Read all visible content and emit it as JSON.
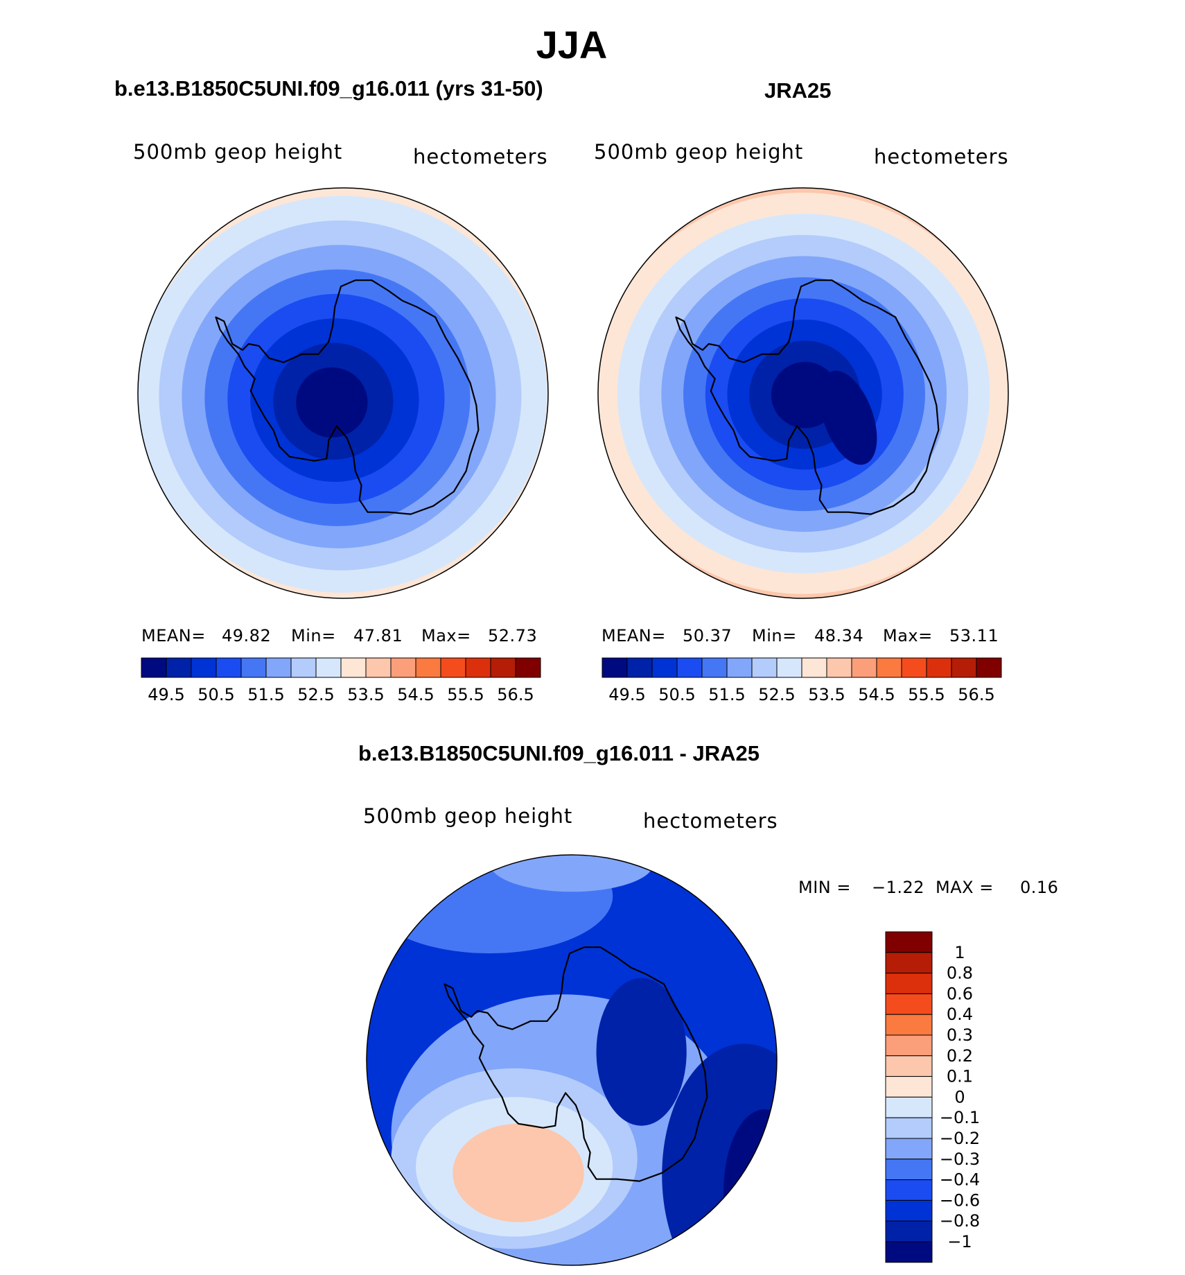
{
  "main_title": "JJA",
  "panels": [
    {
      "title": "b.e13.B1850C5UNI.f09_g16.011 (yrs 31-50)",
      "var_label": "500mb geop height",
      "units": "hectometers",
      "stats": {
        "mean_label": "MEAN=",
        "mean": "49.82",
        "min_label": "Min=",
        "min": "47.81",
        "max_label": "Max=",
        "max": "52.73"
      }
    },
    {
      "title": "JRA25",
      "var_label": "500mb geop height",
      "units": "hectometers",
      "stats": {
        "mean_label": "MEAN=",
        "mean": "50.37",
        "min_label": "Min=",
        "min": "48.34",
        "max_label": "Max=",
        "max": "53.11"
      }
    },
    {
      "title": "b.e13.B1850C5UNI.f09_g16.011 - JRA25",
      "var_label": "500mb geop height",
      "units": "hectometers",
      "stats": {
        "min_label": "MIN =",
        "min": "−1.22",
        "max_label": "MAX =",
        "max": "0.16"
      }
    }
  ],
  "chart_data": [
    {
      "type": "heatmap",
      "title": "b.e13.B1850C5UNI.f09_g16.011 (yrs 31-50)",
      "projection": "south polar stereographic",
      "variable": "500mb geop height",
      "units": "hectometers",
      "mean": 49.82,
      "min": 47.81,
      "max": 52.73,
      "levels": [
        49.5,
        50,
        50.5,
        51,
        51.5,
        52,
        52.5,
        53,
        53.5,
        54,
        54.5,
        55,
        55.5,
        56,
        56.5
      ],
      "tick_labels": [
        "49.5",
        "50.5",
        "51.5",
        "52.5",
        "53.5",
        "54.5",
        "55.5",
        "56.5"
      ],
      "colors": [
        "#000a80",
        "#0022a8",
        "#0033d6",
        "#1a4cf2",
        "#4577f5",
        "#82a6f9",
        "#b3ccfb",
        "#d6e7fc",
        "#fde6d6",
        "#fcc7ad",
        "#fb9e7a",
        "#fa7a40",
        "#f54c1e",
        "#dc300c",
        "#b51d06",
        "#800000"
      ],
      "rings_outer_to_inner": [
        52.75,
        52.25,
        51.75,
        51.25,
        50.75,
        50.25,
        49.75,
        49.25
      ],
      "center_offset": [
        -0.06,
        0.05
      ]
    },
    {
      "type": "heatmap",
      "title": "JRA25",
      "projection": "south polar stereographic",
      "variable": "500mb geop height",
      "units": "hectometers",
      "mean": 50.37,
      "min": 48.34,
      "max": 53.11,
      "levels": [
        49.5,
        50,
        50.5,
        51,
        51.5,
        52,
        52.5,
        53,
        53.5,
        54,
        54.5,
        55,
        55.5,
        56,
        56.5
      ],
      "tick_labels": [
        "49.5",
        "50.5",
        "51.5",
        "52.5",
        "53.5",
        "54.5",
        "55.5",
        "56.5"
      ],
      "colors": [
        "#000a80",
        "#0022a8",
        "#0033d6",
        "#1a4cf2",
        "#4577f5",
        "#82a6f9",
        "#b3ccfb",
        "#d6e7fc",
        "#fde6d6",
        "#fcc7ad",
        "#fb9e7a",
        "#fa7a40",
        "#f54c1e",
        "#dc300c",
        "#b51d06",
        "#800000"
      ],
      "rings_outer_to_inner": [
        53.25,
        52.75,
        52.25,
        51.75,
        51.25,
        50.75,
        50.25,
        49.75,
        49.25
      ],
      "center_offset": [
        0.01,
        0.01
      ]
    },
    {
      "type": "heatmap",
      "title": "b.e13.B1850C5UNI.f09_g16.011 - JRA25",
      "projection": "south polar stereographic",
      "variable": "500mb geop height",
      "units": "hectometers",
      "min": -1.22,
      "max": 0.16,
      "levels": [
        -1,
        -0.8,
        -0.6,
        -0.4,
        -0.3,
        -0.2,
        -0.1,
        0,
        0.1,
        0.2,
        0.3,
        0.4,
        0.6,
        0.8,
        1
      ],
      "tick_labels": [
        "1",
        "0.8",
        "0.6",
        "0.4",
        "0.3",
        "0.2",
        "0.1",
        "0",
        "−0.1",
        "−0.2",
        "−0.3",
        "−0.4",
        "−0.6",
        "−0.8",
        "−1"
      ],
      "colors": [
        "#000a80",
        "#0022a8",
        "#0033d6",
        "#1a4cf2",
        "#4577f5",
        "#82a6f9",
        "#b3ccfb",
        "#d6e7fc",
        "#fde6d6",
        "#fcc7ad",
        "#fb9e7a",
        "#fa7a40",
        "#f54c1e",
        "#dc300c",
        "#b51d06",
        "#800000"
      ],
      "background_value": -0.7,
      "blobs": [
        {
          "value": -0.3,
          "cx": 0.48,
          "cy": 0.68,
          "rx": 0.42,
          "ry": 0.34
        },
        {
          "value": -0.2,
          "cx": 0.36,
          "cy": 0.74,
          "rx": 0.3,
          "ry": 0.22
        },
        {
          "value": -0.1,
          "cx": 0.36,
          "cy": 0.76,
          "rx": 0.24,
          "ry": 0.17
        },
        {
          "value": 0.1,
          "cx": 0.37,
          "cy": 0.775,
          "rx": 0.16,
          "ry": 0.12
        },
        {
          "value": 0.15,
          "cx": 0.36,
          "cy": 0.78,
          "rx": 0.09,
          "ry": 0.06
        },
        {
          "value": -0.9,
          "cx": 0.92,
          "cy": 0.78,
          "rx": 0.2,
          "ry": 0.32
        },
        {
          "value": -1.1,
          "cx": 0.97,
          "cy": 0.82,
          "rx": 0.1,
          "ry": 0.2
        },
        {
          "value": -0.9,
          "cx": 0.67,
          "cy": 0.48,
          "rx": 0.11,
          "ry": 0.18
        },
        {
          "value": -0.4,
          "cx": 0.3,
          "cy": 0.1,
          "rx": 0.3,
          "ry": 0.14
        },
        {
          "value": -0.3,
          "cx": 0.5,
          "cy": 0.02,
          "rx": 0.2,
          "ry": 0.07
        }
      ]
    }
  ]
}
